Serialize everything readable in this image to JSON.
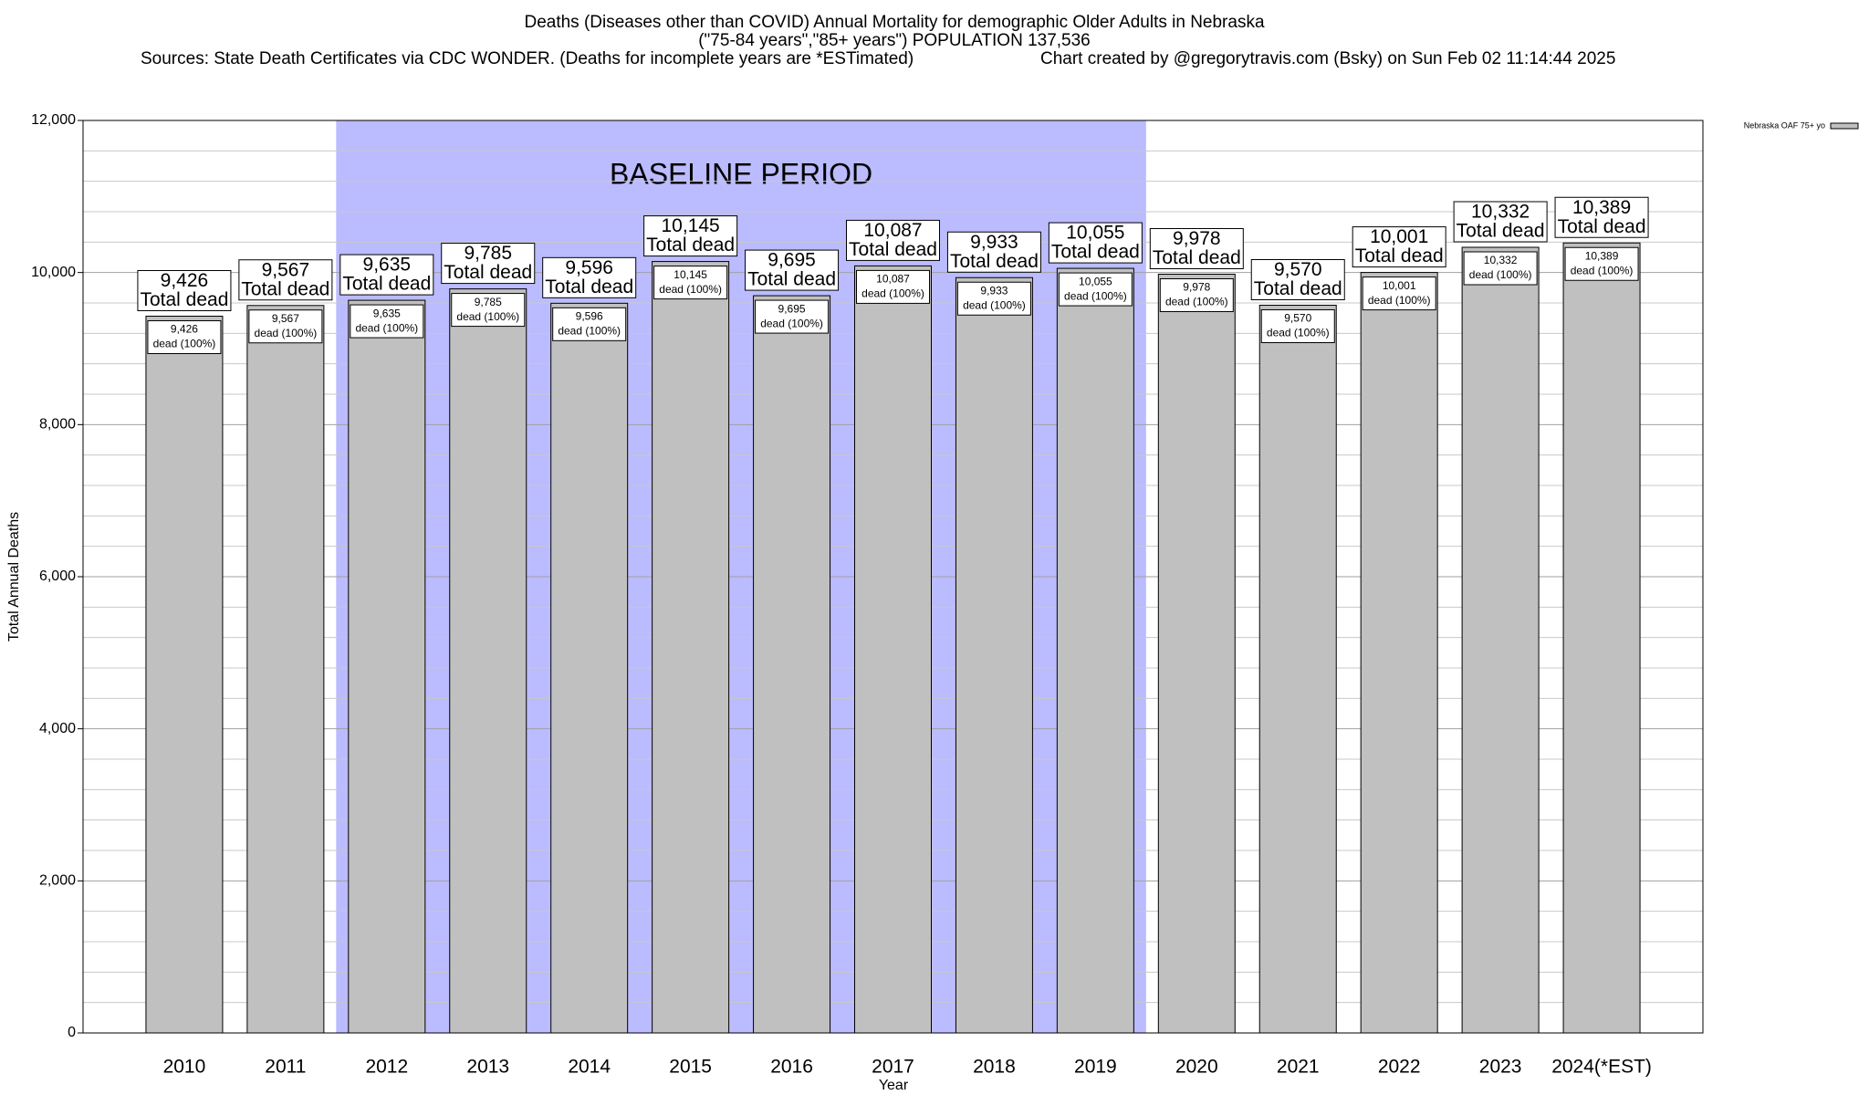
{
  "chart_data": {
    "type": "bar",
    "title": "Deaths (Diseases other than COVID) Annual Mortality for demographic Older Adults in Nebraska",
    "subtitle": "(\"75-84 years\",\"85+ years\") POPULATION 137,536",
    "sources": "Sources: State Death Certificates via CDC WONDER. (Deaths for incomplete years are *ESTimated)",
    "credit": "Chart created by @gregorytravis.com (Bsky) on Sun Feb 02 11:14:44 2025",
    "x_label": "Year",
    "y_label": "Total Annual Deaths",
    "categories": [
      "2010",
      "2011",
      "2012",
      "2013",
      "2014",
      "2015",
      "2016",
      "2017",
      "2018",
      "2019",
      "2020",
      "2021",
      "2022",
      "2023",
      "2024(*EST)"
    ],
    "series": [
      {
        "name": "Nebraska OAF 75+ yo",
        "color": "#c0c0c0",
        "values": [
          9426,
          9567,
          9635,
          9785,
          9596,
          10145,
          9695,
          10087,
          9933,
          10055,
          9978,
          9570,
          10001,
          10332,
          10389
        ],
        "value_labels": [
          "9,426",
          "9,567",
          "9,635",
          "9,785",
          "9,596",
          "10,145",
          "9,695",
          "10,087",
          "9,933",
          "10,055",
          "9,978",
          "9,570",
          "10,001",
          "10,332",
          "10,389"
        ]
      }
    ],
    "outer_label_caption": "Total dead",
    "inner_label_caption": "dead (100%)",
    "ylim": [
      0,
      12000
    ],
    "yticks": [
      0,
      {
        "value": 2000,
        "label": "2,000"
      },
      {
        "value": 4000,
        "label": "4,000"
      },
      {
        "value": 6000,
        "label": "6,000"
      },
      {
        "value": 8000,
        "label": "8,000"
      },
      {
        "value": 10000,
        "label": "10,000"
      },
      {
        "value": 12000,
        "label": "12,000"
      }
    ],
    "y_minor_ticks": [
      400,
      800,
      1200,
      1600,
      2400,
      2800,
      3200,
      3600,
      4400,
      4800,
      5200,
      5600,
      6400,
      6800,
      7200,
      7600,
      8400,
      8800,
      9200,
      9600,
      10400,
      10800,
      11200,
      11600
    ],
    "grid": true,
    "legend_position": "top-right",
    "shaded_span": {
      "label": "BASELINE PERIOD",
      "from": "2012",
      "to": "2019",
      "color": "#bbbbff"
    }
  }
}
